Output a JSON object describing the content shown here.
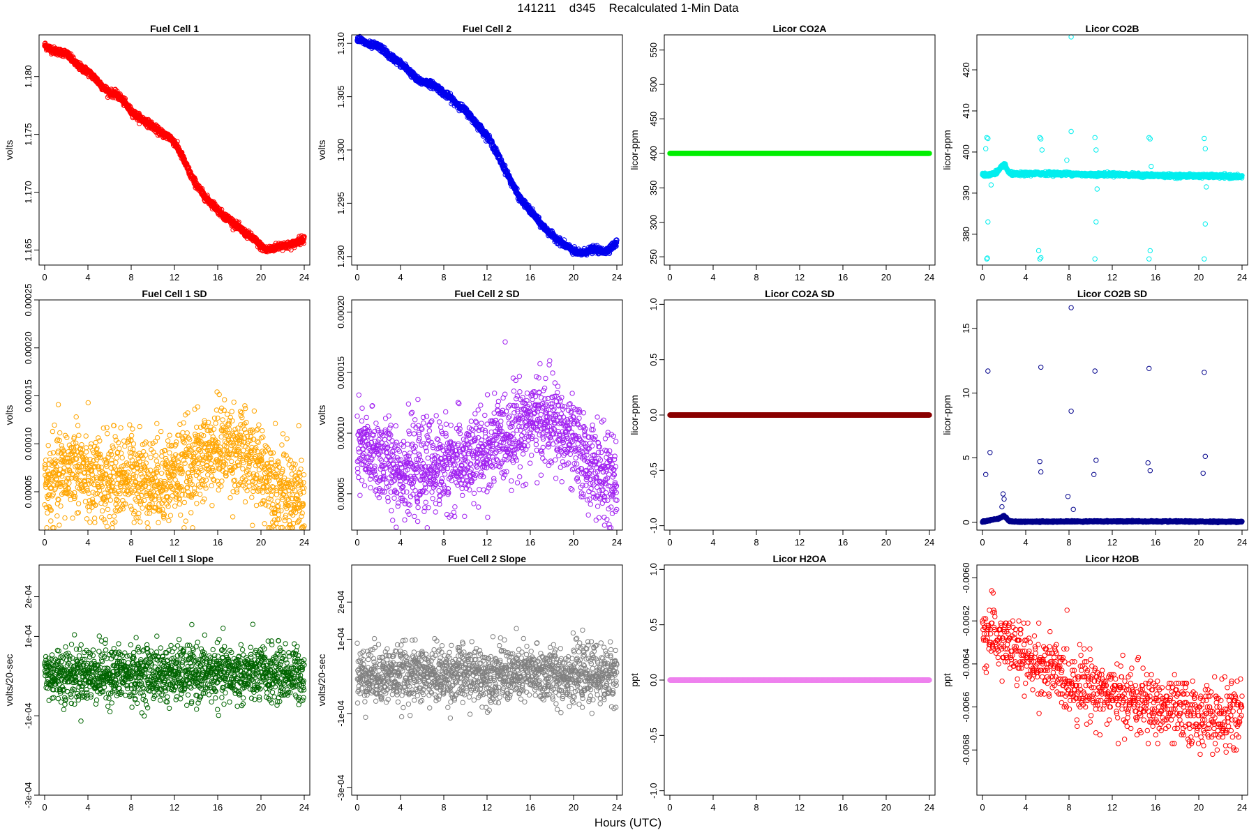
{
  "figure": {
    "title": "141211    d345    Recalculated 1-Min Data",
    "xlabel": "Hours (UTC)"
  },
  "chart_data": [
    {
      "type": "scatter",
      "title": "Fuel Cell 1",
      "ylabel": "volts",
      "color": "#ff0000",
      "xlim": [
        0,
        24
      ],
      "xticks": [
        0,
        4,
        8,
        12,
        16,
        20,
        24
      ],
      "ylim": [
        1.1637,
        1.1836
      ],
      "yticks": [
        1.165,
        1.17,
        1.175,
        1.18
      ],
      "ytick_labels": [
        "1.165",
        "1.170",
        "1.175",
        "1.180"
      ],
      "x": [
        0,
        0.5,
        1,
        1.5,
        2,
        2.5,
        3,
        3.5,
        4,
        4.5,
        5,
        5.5,
        6,
        6.5,
        7,
        7.5,
        8,
        8.5,
        9,
        9.5,
        10,
        10.5,
        11,
        11.5,
        12,
        12.5,
        13,
        13.5,
        14,
        14.5,
        15,
        15.5,
        16,
        16.5,
        17,
        17.5,
        18,
        18.5,
        19,
        19.5,
        20,
        20.5,
        21,
        21.5,
        22,
        22.5,
        23,
        23.5,
        24
      ],
      "y": [
        1.1827,
        1.1824,
        1.1822,
        1.1821,
        1.182,
        1.1815,
        1.181,
        1.1807,
        1.1804,
        1.18,
        1.1795,
        1.179,
        1.1786,
        1.1785,
        1.1782,
        1.1776,
        1.177,
        1.1766,
        1.1763,
        1.176,
        1.1757,
        1.1753,
        1.175,
        1.1748,
        1.1743,
        1.1735,
        1.1725,
        1.1715,
        1.1707,
        1.17,
        1.1694,
        1.169,
        1.1685,
        1.168,
        1.1677,
        1.1673,
        1.1669,
        1.1665,
        1.1662,
        1.1658,
        1.1653,
        1.165,
        1.1651,
        1.1653,
        1.1654,
        1.1654,
        1.1655,
        1.1658,
        1.166
      ],
      "spread": 0.0003,
      "n": 1440
    },
    {
      "type": "scatter",
      "title": "Fuel Cell 2",
      "ylabel": "volts",
      "color": "#0000ee",
      "xlim": [
        0,
        24
      ],
      "xticks": [
        0,
        4,
        8,
        12,
        16,
        20,
        24
      ],
      "ylim": [
        1.2892,
        1.3108
      ],
      "yticks": [
        1.29,
        1.295,
        1.3,
        1.305,
        1.31
      ],
      "ytick_labels": [
        "1.290",
        "1.295",
        "1.300",
        "1.305",
        "1.310"
      ],
      "x": [
        0,
        0.5,
        1,
        1.5,
        2,
        2.5,
        3,
        3.5,
        4,
        4.5,
        5,
        5.5,
        6,
        6.5,
        7,
        7.5,
        8,
        8.5,
        9,
        9.5,
        10,
        10.5,
        11,
        11.5,
        12,
        12.5,
        13,
        13.5,
        14,
        14.5,
        15,
        15.5,
        16,
        16.5,
        17,
        17.5,
        18,
        18.5,
        19,
        19.5,
        20,
        20.5,
        21,
        21.5,
        22,
        22.5,
        23,
        23.5,
        24
      ],
      "y": [
        1.3105,
        1.3102,
        1.3099,
        1.3098,
        1.3097,
        1.3093,
        1.3088,
        1.3085,
        1.3081,
        1.3077,
        1.3072,
        1.3066,
        1.3064,
        1.3063,
        1.3061,
        1.3058,
        1.3053,
        1.305,
        1.3045,
        1.3041,
        1.3037,
        1.3031,
        1.3025,
        1.3019,
        1.3013,
        1.3005,
        1.2995,
        1.2985,
        1.2975,
        1.2965,
        1.2955,
        1.2949,
        1.2943,
        1.2937,
        1.293,
        1.2925,
        1.292,
        1.2916,
        1.2912,
        1.2909,
        1.2905,
        1.2903,
        1.2904,
        1.2906,
        1.2907,
        1.2905,
        1.2905,
        1.2909,
        1.2913
      ],
      "spread": 0.0003,
      "n": 1440
    },
    {
      "type": "scatter",
      "title": "Licor CO2A",
      "ylabel": "licor-ppm",
      "color": "#00ee00",
      "xlim": [
        0,
        24
      ],
      "xticks": [
        0,
        4,
        8,
        12,
        16,
        20,
        24
      ],
      "ylim": [
        238,
        572
      ],
      "yticks": [
        250,
        300,
        350,
        400,
        450,
        500,
        550
      ],
      "ytick_labels": [
        "250",
        "300",
        "350",
        "400",
        "450",
        "500",
        "550"
      ],
      "x": [
        0,
        24
      ],
      "y": [
        400,
        400
      ],
      "spread": 0,
      "n": 1440
    },
    {
      "type": "scatter",
      "title": "Licor CO2B",
      "ylabel": "licor-ppm",
      "color": "#00eeee",
      "xlim": [
        0,
        24
      ],
      "xticks": [
        0,
        4,
        8,
        12,
        16,
        20,
        24
      ],
      "ylim": [
        372.5,
        428.5
      ],
      "yticks": [
        380,
        390,
        400,
        410,
        420
      ],
      "ytick_labels": [
        "380",
        "390",
        "400",
        "410",
        "420"
      ],
      "x": [
        0,
        0.5,
        1,
        1.5,
        2,
        2.5,
        3,
        4,
        6,
        8,
        10,
        12,
        14,
        16,
        18,
        20,
        22,
        24
      ],
      "y": [
        394.5,
        394.4,
        394.7,
        395.5,
        397.0,
        394.8,
        394.6,
        394.7,
        394.8,
        394.7,
        394.5,
        394.6,
        394.4,
        394.3,
        394.2,
        394.2,
        394.1,
        394.0
      ],
      "spread": 0.4,
      "n": 1440,
      "outliers": [
        [
          0.4,
          374
        ],
        [
          0.45,
          374.2
        ],
        [
          0.5,
          383
        ],
        [
          0.4,
          403.5
        ],
        [
          0.5,
          403.3
        ],
        [
          0.3,
          400.8
        ],
        [
          0.8,
          392
        ],
        [
          5.3,
          374
        ],
        [
          5.4,
          374.3
        ],
        [
          5.2,
          376
        ],
        [
          5.3,
          403.5
        ],
        [
          5.4,
          403.2
        ],
        [
          5.5,
          400.5
        ],
        [
          8.2,
          428
        ],
        [
          8.2,
          405
        ],
        [
          7.8,
          398
        ],
        [
          10.4,
          374
        ],
        [
          10.5,
          383
        ],
        [
          10.4,
          403.5
        ],
        [
          10.5,
          400.5
        ],
        [
          10.6,
          391
        ],
        [
          15.4,
          374
        ],
        [
          15.5,
          376
        ],
        [
          15.4,
          403.5
        ],
        [
          15.5,
          403.2
        ],
        [
          15.6,
          396.5
        ],
        [
          20.5,
          374
        ],
        [
          20.6,
          382.5
        ],
        [
          20.5,
          403.3
        ],
        [
          20.6,
          400.8
        ],
        [
          20.7,
          391.5
        ]
      ]
    },
    {
      "type": "scatter",
      "title": "Fuel Cell 1 SD",
      "ylabel": "volts",
      "color": "#ffa500",
      "xlim": [
        0,
        24
      ],
      "xticks": [
        0,
        4,
        8,
        12,
        16,
        20,
        24
      ],
      "ylim": [
        1e-05,
        0.00025
      ],
      "yticks": [
        5e-05,
        0.0001,
        0.00015,
        0.0002,
        0.00025
      ],
      "ytick_labels": [
        "0.00005",
        "0.00010",
        "0.00015",
        "0.00020",
        "0.00025"
      ],
      "x": [
        0,
        2,
        3,
        4,
        6,
        8,
        10,
        12,
        14,
        16,
        17,
        18,
        20,
        22,
        24
      ],
      "y": [
        5.5e-05,
        7e-05,
        8e-05,
        6e-05,
        6.2e-05,
        7e-05,
        6e-05,
        6.8e-05,
        8e-05,
        9.5e-05,
        0.0001,
        9e-05,
        7.5e-05,
        5e-05,
        4e-05
      ],
      "spread": 4.2e-05,
      "n": 1440
    },
    {
      "type": "scatter",
      "title": "Fuel Cell 2 SD",
      "ylabel": "volts",
      "color": "#a020f0",
      "xlim": [
        0,
        24
      ],
      "xticks": [
        0,
        4,
        8,
        12,
        16,
        20,
        24
      ],
      "ylim": [
        2e-05,
        0.00021
      ],
      "yticks": [
        5e-05,
        0.0001,
        0.00015,
        0.0002
      ],
      "ytick_labels": [
        "0.00005",
        "0.00010",
        "0.00015",
        "0.00020"
      ],
      "x": [
        0,
        2,
        4,
        6,
        8,
        10,
        12,
        14,
        16,
        18,
        20,
        22,
        24
      ],
      "y": [
        8.5e-05,
        8e-05,
        7e-05,
        7e-05,
        7.5e-05,
        7.5e-05,
        8.5e-05,
        0.0001,
        0.00011,
        0.00011,
        9e-05,
        7e-05,
        5.5e-05
      ],
      "spread": 3.3e-05,
      "n": 1440
    },
    {
      "type": "scatter",
      "title": "Licor CO2A SD",
      "ylabel": "licor-ppm",
      "color": "#8b0000",
      "xlim": [
        0,
        24
      ],
      "xticks": [
        0,
        4,
        8,
        12,
        16,
        20,
        24
      ],
      "ylim": [
        -1.04,
        1.04
      ],
      "yticks": [
        -1,
        -0.5,
        0,
        0.5,
        1
      ],
      "ytick_labels": [
        "-1.0",
        "-0.5",
        "0.0",
        "0.5",
        "1.0"
      ],
      "x": [
        0,
        24
      ],
      "y": [
        0,
        0
      ],
      "spread": 0,
      "n": 1440
    },
    {
      "type": "scatter",
      "title": "Licor CO2B SD",
      "ylabel": "licor-ppm",
      "color": "#00008b",
      "xlim": [
        0,
        24
      ],
      "xticks": [
        0,
        4,
        8,
        12,
        16,
        20,
        24
      ],
      "ylim": [
        -0.6,
        17.2
      ],
      "yticks": [
        0,
        5,
        10,
        15
      ],
      "ytick_labels": [
        "0",
        "5",
        "10",
        "15"
      ],
      "x": [
        0,
        1.5,
        2,
        2.5,
        3,
        6,
        12,
        24
      ],
      "y": [
        0.05,
        0.3,
        0.5,
        0.1,
        0.05,
        0.06,
        0.08,
        0.05
      ],
      "spread": 0.05,
      "n": 1440,
      "outliers": [
        [
          0.3,
          3.7
        ],
        [
          0.5,
          11.7
        ],
        [
          0.7,
          5.4
        ],
        [
          1.9,
          2.2
        ],
        [
          2.0,
          1.8
        ],
        [
          1.8,
          1.2
        ],
        [
          5.3,
          4.7
        ],
        [
          5.4,
          3.9
        ],
        [
          5.4,
          12.0
        ],
        [
          8.2,
          16.6
        ],
        [
          8.2,
          8.6
        ],
        [
          7.9,
          2.0
        ],
        [
          8.4,
          1.0
        ],
        [
          10.4,
          11.7
        ],
        [
          10.5,
          4.8
        ],
        [
          10.3,
          3.7
        ],
        [
          15.4,
          11.9
        ],
        [
          15.5,
          4.0
        ],
        [
          15.3,
          4.6
        ],
        [
          20.5,
          11.6
        ],
        [
          20.6,
          5.1
        ],
        [
          20.4,
          3.8
        ]
      ]
    },
    {
      "type": "scatter",
      "title": "Fuel Cell 1 Slope",
      "ylabel": "volts/20-sec",
      "color": "#006400",
      "xlim": [
        0,
        24
      ],
      "xticks": [
        0,
        4,
        8,
        12,
        16,
        20,
        24
      ],
      "ylim": [
        -0.0003,
        0.00028
      ],
      "yticks": [
        -0.0003,
        -0.0001,
        0.0001,
        0.0002
      ],
      "ytick_labels": [
        "-3e-04",
        "-1e-04",
        "1e-04",
        "2e-04"
      ],
      "x": [
        0,
        24
      ],
      "y": [
        5e-06,
        5e-06
      ],
      "spread": 7e-05,
      "n": 1440
    },
    {
      "type": "scatter",
      "title": "Fuel Cell 2 Slope",
      "ylabel": "volts/20-sec",
      "color": "#808080",
      "xlim": [
        0,
        24
      ],
      "xticks": [
        0,
        4,
        8,
        12,
        16,
        20,
        24
      ],
      "ylim": [
        -0.00032,
        0.0003
      ],
      "yticks": [
        -0.0003,
        -0.0001,
        0.0001,
        0.0002
      ],
      "ytick_labels": [
        "-3e-04",
        "-1e-04",
        "1e-04",
        "2e-04"
      ],
      "x": [
        0,
        24
      ],
      "y": [
        5e-06,
        5e-06
      ],
      "spread": 7.5e-05,
      "n": 1440
    },
    {
      "type": "scatter",
      "title": "Licor H2OA",
      "ylabel": "ppt",
      "color": "#ee82ee",
      "xlim": [
        0,
        24
      ],
      "xticks": [
        0,
        4,
        8,
        12,
        16,
        20,
        24
      ],
      "ylim": [
        -1.04,
        1.04
      ],
      "yticks": [
        -1,
        -0.5,
        0,
        0.5,
        1
      ],
      "ytick_labels": [
        "-1.0",
        "-0.5",
        "0.0",
        "0.5",
        "1.0"
      ],
      "x": [
        0,
        24
      ],
      "y": [
        0,
        0
      ],
      "spread": 0,
      "n": 1440
    },
    {
      "type": "scatter",
      "title": "Licor H2OB",
      "ylabel": "ppt",
      "color": "#ff0000",
      "xlim": [
        0,
        24
      ],
      "xticks": [
        0,
        4,
        8,
        12,
        16,
        20,
        24
      ],
      "ylim": [
        -0.00701,
        -0.00594
      ],
      "yticks": [
        -0.0068,
        -0.0066,
        -0.0064,
        -0.0062,
        -0.006
      ],
      "ytick_labels": [
        "-0.0068",
        "-0.0066",
        "-0.0064",
        "-0.0062",
        "-0.0060"
      ],
      "x": [
        0,
        2,
        4,
        6,
        8,
        10,
        12,
        14,
        16,
        18,
        20,
        22,
        24
      ],
      "y": [
        -0.00625,
        -0.0063,
        -0.00638,
        -0.00642,
        -0.00648,
        -0.0065,
        -0.00655,
        -0.00657,
        -0.0066,
        -0.00662,
        -0.00664,
        -0.00665,
        -0.00664
      ],
      "spread": 0.00015,
      "quantum": 1e-05,
      "n": 900
    }
  ]
}
